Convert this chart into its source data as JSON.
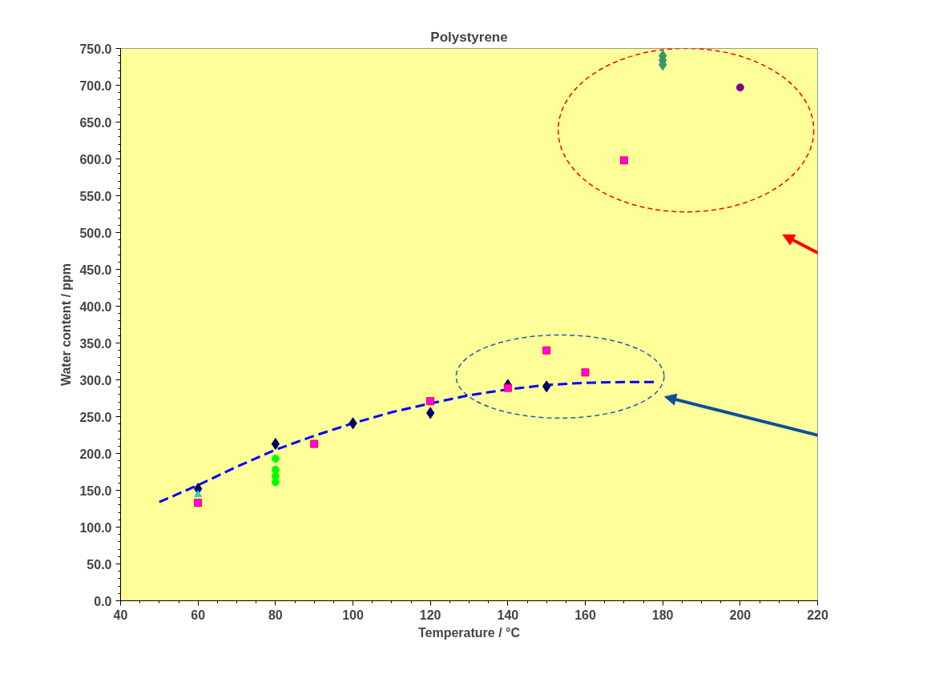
{
  "chart_data": {
    "type": "scatter",
    "title": "Polystyrene",
    "xlabel": "Temperature / °C",
    "ylabel": "Water content / ppm",
    "xlim": [
      40,
      220
    ],
    "xticks": [
      40,
      60,
      80,
      100,
      120,
      140,
      160,
      180,
      200,
      220
    ],
    "ylim": [
      0,
      750
    ],
    "yticks": [
      {
        "value": 0,
        "label": "0.0"
      },
      {
        "value": 50,
        "label": "50.0"
      },
      {
        "value": 100,
        "label": "100.0"
      },
      {
        "value": 150,
        "label": "150.0"
      },
      {
        "value": 200,
        "label": "200.0"
      },
      {
        "value": 250,
        "label": "250.0"
      },
      {
        "value": 300,
        "label": "300.0"
      },
      {
        "value": 350,
        "label": "350.0"
      },
      {
        "value": 400,
        "label": "400.0"
      },
      {
        "value": 450,
        "label": "450.0"
      },
      {
        "value": 500,
        "label": "500.0"
      },
      {
        "value": 550,
        "label": "550.0"
      },
      {
        "value": 600,
        "label": "600.0"
      },
      {
        "value": 650,
        "label": "650.0"
      },
      {
        "value": 700,
        "label": "700.0"
      },
      {
        "value": 750,
        "label": "750.0"
      }
    ],
    "grid": false,
    "series": [
      {
        "type": "line",
        "color": "#0000ff",
        "line_style": "dashed",
        "marker": "none",
        "x": [
          50,
          60,
          70,
          80,
          90,
          100,
          110,
          120,
          130,
          140,
          150,
          160,
          170,
          178
        ],
        "values": [
          134,
          157,
          182,
          205,
          224,
          241,
          256,
          268,
          279,
          287,
          293,
          296,
          297,
          297
        ]
      },
      {
        "type": "scatter",
        "color": "#000066",
        "marker": "diamond",
        "x": [
          60,
          80,
          100,
          120,
          140,
          150
        ],
        "values": [
          152,
          213,
          241,
          255,
          293,
          291
        ]
      },
      {
        "type": "scatter",
        "color": "#ff00ff",
        "marker": "square",
        "x": [
          60,
          90,
          120,
          140,
          150,
          160,
          170
        ],
        "values": [
          133,
          213,
          271,
          289,
          340,
          310,
          598
        ]
      },
      {
        "type": "scatter",
        "color": "#33cccc",
        "marker": "triangle",
        "x": [
          60
        ],
        "values": [
          144
        ]
      },
      {
        "type": "scatter",
        "color": "#00ff00",
        "marker": "circle",
        "x": [
          80,
          80,
          80,
          80
        ],
        "values": [
          193,
          178,
          169,
          161
        ]
      },
      {
        "type": "scatter",
        "color": "#339966",
        "marker": "diamond",
        "x": [
          180,
          180,
          180
        ],
        "values": [
          740,
          734,
          728
        ]
      },
      {
        "type": "scatter",
        "color": "#800080",
        "marker": "circle",
        "x": [
          200
        ],
        "values": [
          697
        ]
      }
    ]
  }
}
